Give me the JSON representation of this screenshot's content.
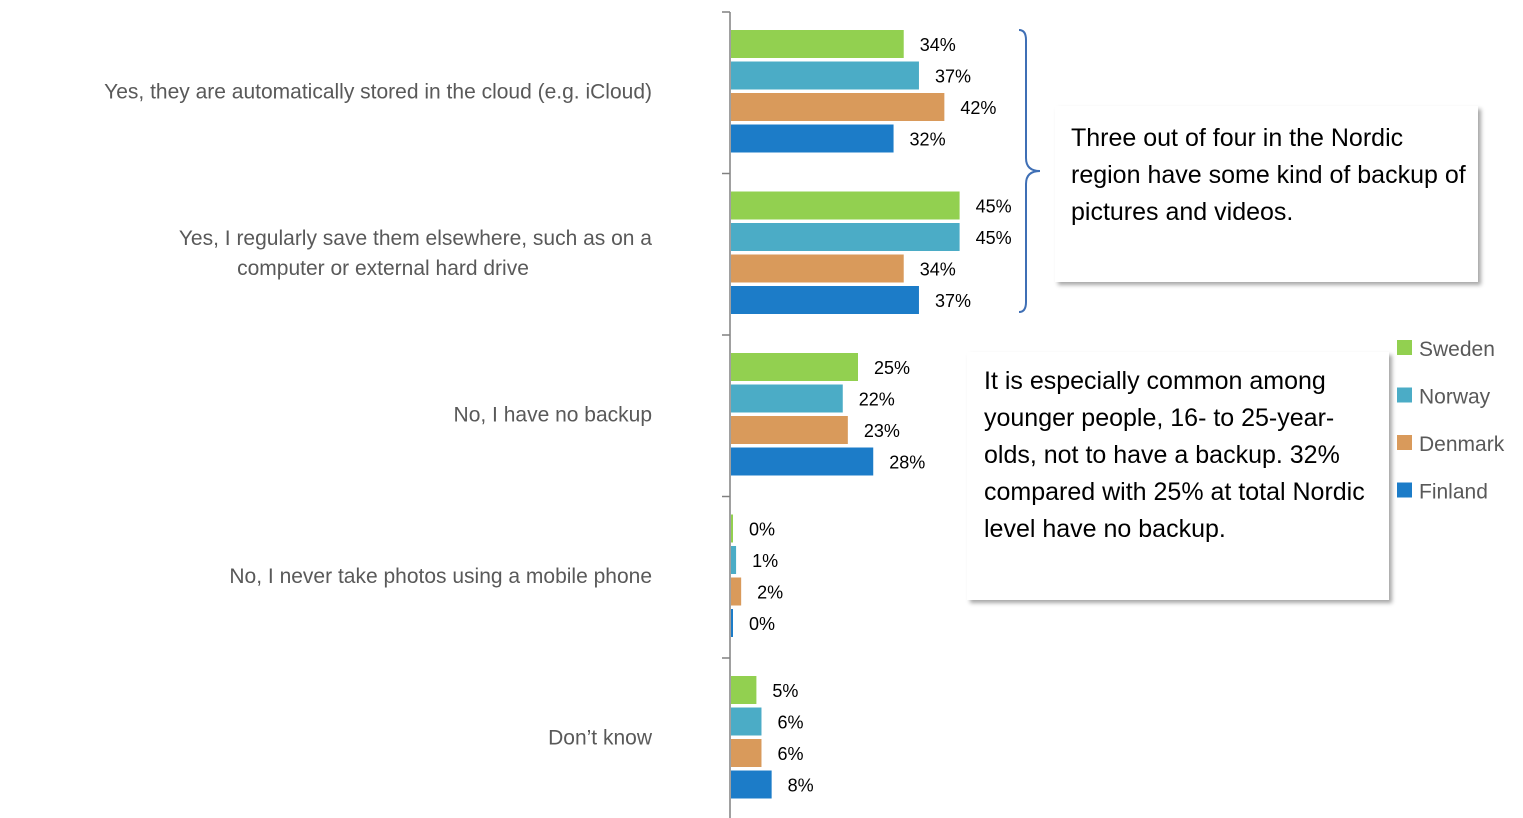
{
  "chart_data": {
    "type": "bar",
    "orientation": "horizontal",
    "categories": [
      [
        "Yes, they are automatically stored in the cloud (e.g. iCloud)"
      ],
      [
        "Yes, I regularly save them elsewhere, such as on a",
        "computer or external hard drive"
      ],
      [
        "No, I have no backup"
      ],
      [
        "No, I never take photos using a mobile phone"
      ],
      [
        "Don’t know"
      ]
    ],
    "series": [
      {
        "name": "Sweden",
        "color": "#92D050",
        "values": [
          34,
          45,
          25,
          0,
          5
        ]
      },
      {
        "name": "Norway",
        "color": "#4BACC6",
        "values": [
          37,
          45,
          22,
          1,
          6
        ]
      },
      {
        "name": "Denmark",
        "color": "#D99A5B",
        "values": [
          42,
          34,
          23,
          2,
          6
        ]
      },
      {
        "name": "Finland",
        "color": "#1C7CC8",
        "values": [
          32,
          37,
          28,
          0,
          8
        ]
      }
    ],
    "value_suffix": "%",
    "legend_position": "right",
    "grid": false
  },
  "annotations": {
    "callout_1": "Three out of four in the Nordic region have some kind of backup of pictures and videos.",
    "callout_2": "It is especially common among younger people, 16- to 25-year-olds, not to have a backup. 32% compared with 25% at total Nordic level have no backup."
  },
  "colors": {
    "axis": "#808080",
    "label_text": "#595959",
    "bracket": "#3F6FB5"
  }
}
